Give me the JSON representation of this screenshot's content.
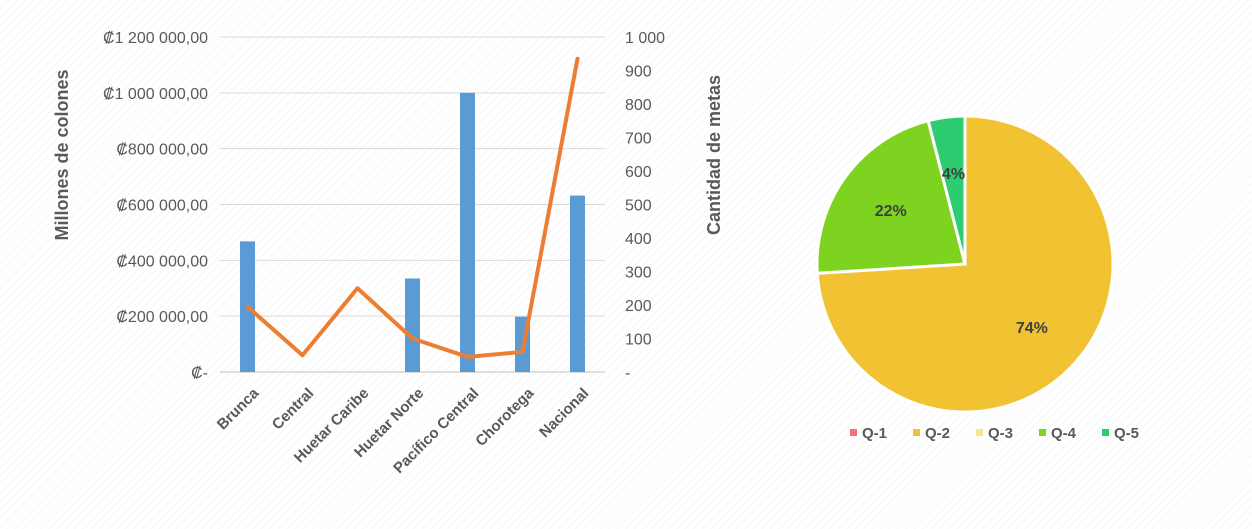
{
  "chart_data": [
    {
      "type": "bar+line",
      "categories": [
        "Brunca",
        "Central",
        "Huetar Caribe",
        "Huetar Norte",
        "Pacífico Central",
        "Chorotega",
        "Nacional"
      ],
      "series": [
        {
          "type": "bar",
          "axis": "left",
          "color": "#5b9bd5",
          "values": [
            468000,
            0,
            0,
            335000,
            1000000,
            198000,
            632000
          ]
        },
        {
          "type": "line",
          "axis": "right",
          "color": "#ed7d31",
          "values": [
            195,
            50,
            250,
            100,
            45,
            60,
            935
          ]
        }
      ],
      "ylabel_left": "Millones de colones",
      "ylabel_right": "Cantidad de metas",
      "ylim_left": [
        0,
        1200000
      ],
      "ylim_right": [
        0,
        1000
      ],
      "yticks_left": [
        "₡-",
        "₡200 000,00",
        "₡400 000,00",
        "₡600 000,00",
        "₡800 000,00",
        "₡1 000 000,00",
        "₡1 200 000,00"
      ],
      "yticks_right": [
        "-",
        "100",
        "200",
        "300",
        "400",
        "500",
        "600",
        "700",
        "800",
        "900",
        "1 000"
      ],
      "grid": true
    },
    {
      "type": "pie",
      "categories": [
        "Q-1",
        "Q-2",
        "Q-3",
        "Q-4",
        "Q-5"
      ],
      "values": [
        0,
        74,
        0,
        22,
        4
      ],
      "labels": [
        "",
        "74%",
        "",
        "22%",
        "4%"
      ],
      "colors": [
        "#f4727a",
        "#f1c232",
        "#f7e58c",
        "#7ed321",
        "#2ecc71"
      ],
      "legend_position": "bottom"
    }
  ]
}
